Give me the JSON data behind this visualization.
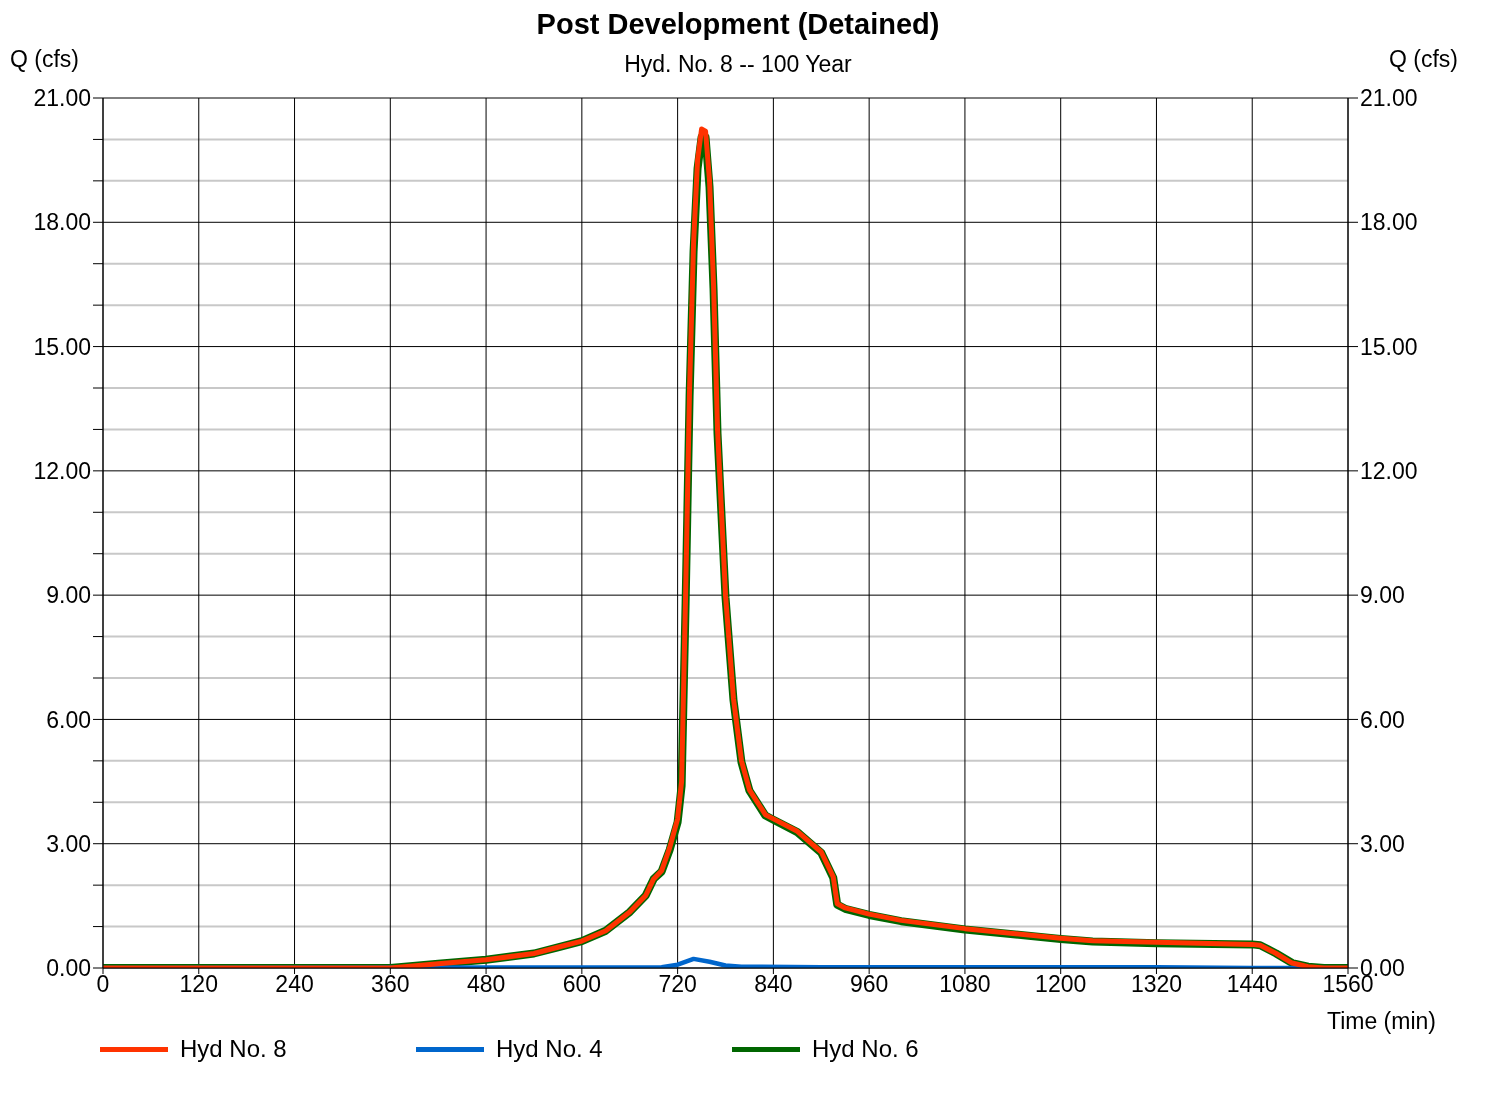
{
  "chart_data": {
    "type": "line",
    "title": "Post Development (Detained)",
    "subtitle": "Hyd. No. 8 -- 100 Year",
    "xlabel": "Time (min)",
    "ylabel": "Q (cfs)",
    "y2label": "Q (cfs)",
    "xlim": [
      0,
      1560
    ],
    "xticks": [
      0,
      120,
      240,
      360,
      480,
      600,
      720,
      840,
      960,
      1080,
      1200,
      1320,
      1440,
      1560
    ],
    "ylim": [
      0,
      21
    ],
    "yticks": [
      {
        "value": 0,
        "label": "0.00"
      },
      {
        "value": 1,
        "label": null
      },
      {
        "value": 2,
        "label": null
      },
      {
        "value": 3,
        "label": "3.00"
      },
      {
        "value": 4,
        "label": null
      },
      {
        "value": 5,
        "label": null
      },
      {
        "value": 6,
        "label": "6.00"
      },
      {
        "value": 7,
        "label": null
      },
      {
        "value": 8,
        "label": null
      },
      {
        "value": 9,
        "label": "9.00"
      },
      {
        "value": 10,
        "label": null
      },
      {
        "value": 11,
        "label": null
      },
      {
        "value": 12,
        "label": "12.00"
      },
      {
        "value": 13,
        "label": null
      },
      {
        "value": 14,
        "label": null
      },
      {
        "value": 15,
        "label": "15.00"
      },
      {
        "value": 16,
        "label": null
      },
      {
        "value": 17,
        "label": null
      },
      {
        "value": 18,
        "label": "18.00"
      },
      {
        "value": 19,
        "label": null
      },
      {
        "value": 20,
        "label": null
      },
      {
        "value": 21,
        "label": "21.00"
      }
    ],
    "y2lim": [
      0,
      21
    ],
    "y2ticks": [
      {
        "value": 0,
        "label": "0.00"
      },
      {
        "value": 3,
        "label": "3.00"
      },
      {
        "value": 6,
        "label": "6.00"
      },
      {
        "value": 9,
        "label": "9.00"
      },
      {
        "value": 12,
        "label": "12.00"
      },
      {
        "value": 15,
        "label": "15.00"
      },
      {
        "value": 18,
        "label": "18.00"
      },
      {
        "value": 21,
        "label": "21.00"
      }
    ],
    "grid": true,
    "legend": "bottom",
    "marker": "none",
    "line_style": "solid",
    "series": [
      {
        "name": "Hyd No. 8",
        "color": "#ff3300",
        "x": [
          0,
          360,
          420,
          480,
          540,
          570,
          600,
          630,
          660,
          680,
          690,
          700,
          710,
          720,
          725,
          730,
          735,
          740,
          745,
          750,
          755,
          760,
          765,
          770,
          780,
          790,
          800,
          810,
          830,
          840,
          870,
          900,
          915,
          920,
          930,
          960,
          1000,
          1080,
          1200,
          1240,
          1320,
          1440,
          1450,
          1470,
          1490,
          1510,
          1530,
          1560
        ],
        "values": [
          0,
          0,
          0.1,
          0.2,
          0.35,
          0.5,
          0.65,
          0.9,
          1.35,
          1.75,
          2.15,
          2.35,
          2.9,
          3.6,
          4.5,
          9,
          14,
          17.5,
          19.5,
          20.25,
          20.2,
          19,
          16.5,
          13,
          9,
          6.5,
          5,
          4.3,
          3.7,
          3.6,
          3.3,
          2.8,
          2.2,
          1.55,
          1.45,
          1.3,
          1.15,
          0.95,
          0.72,
          0.66,
          0.62,
          0.57,
          0.55,
          0.35,
          0.12,
          0.03,
          0,
          0
        ]
      },
      {
        "name": "Hyd No. 4",
        "color": "#0066cc",
        "x": [
          0,
          700,
          720,
          740,
          760,
          780,
          800,
          900,
          1320,
          1440,
          1560
        ],
        "values": [
          0,
          0.02,
          0.08,
          0.22,
          0.15,
          0.06,
          0.03,
          0.02,
          0.02,
          0,
          0
        ]
      },
      {
        "name": "Hyd No. 6",
        "color": "#006600",
        "x": [
          0,
          360,
          420,
          480,
          540,
          570,
          600,
          630,
          660,
          680,
          690,
          700,
          710,
          720,
          725,
          730,
          735,
          740,
          745,
          750,
          755,
          760,
          765,
          770,
          780,
          790,
          800,
          810,
          830,
          840,
          870,
          900,
          915,
          920,
          930,
          960,
          1000,
          1080,
          1200,
          1240,
          1320,
          1440,
          1450,
          1470,
          1490,
          1510,
          1530,
          1560
        ],
        "values": [
          0,
          0,
          0.1,
          0.2,
          0.35,
          0.5,
          0.65,
          0.9,
          1.35,
          1.75,
          2.15,
          2.33,
          2.85,
          3.52,
          4.4,
          8.8,
          13.8,
          17.3,
          19.3,
          20.05,
          20.05,
          18.85,
          16.4,
          12.9,
          8.95,
          6.47,
          4.97,
          4.28,
          3.68,
          3.58,
          3.28,
          2.78,
          2.18,
          1.53,
          1.43,
          1.28,
          1.13,
          0.93,
          0.7,
          0.64,
          0.6,
          0.57,
          0.55,
          0.35,
          0.12,
          0.03,
          0,
          0
        ]
      }
    ]
  }
}
